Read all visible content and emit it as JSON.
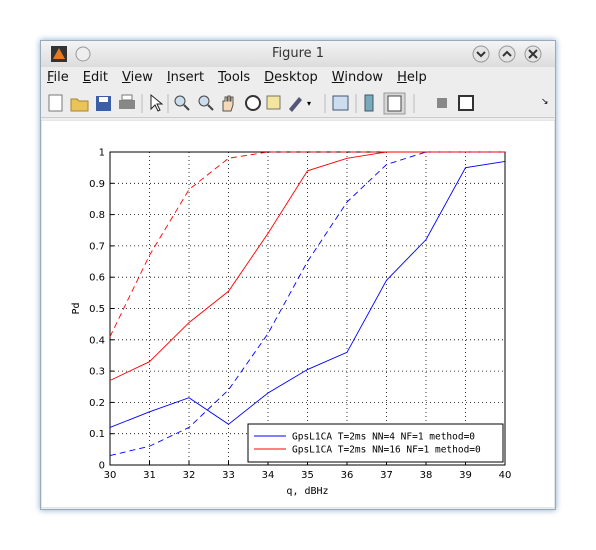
{
  "window": {
    "title": "Figure 1",
    "menu": [
      "File",
      "Edit",
      "View",
      "Insert",
      "Tools",
      "Desktop",
      "Window",
      "Help"
    ]
  },
  "chart_data": {
    "type": "line",
    "x_label": "q, dBHz",
    "y_label": "Pd",
    "x": [
      30,
      31,
      32,
      33,
      34,
      35,
      36,
      37,
      38,
      39,
      40
    ],
    "series": [
      {
        "name": "GpsL1CA T=2ms NN=4 NF=1 method=0",
        "color": "#0000ff",
        "dashed": false,
        "values": [
          0.12,
          0.17,
          0.215,
          0.13,
          0.23,
          0.305,
          0.36,
          0.59,
          0.72,
          0.95,
          0.97
        ]
      },
      {
        "name": "GpsL1CA T=2ms NN=16 NF=1 method=0",
        "color": "#ff0000",
        "dashed": false,
        "values": [
          0.27,
          0.33,
          0.455,
          0.555,
          0.74,
          0.94,
          0.98,
          1.0,
          1.0,
          1.0,
          1.0
        ]
      },
      {
        "color": "#0000ff",
        "dashed": true,
        "values": [
          0.03,
          0.06,
          0.12,
          0.24,
          0.42,
          0.65,
          0.84,
          0.96,
          1.0,
          1.0,
          1.0
        ]
      },
      {
        "color": "#ff0000",
        "dashed": true,
        "values": [
          0.41,
          0.67,
          0.88,
          0.98,
          1.0,
          1.0,
          1.0,
          1.0,
          1.0,
          1.0,
          1.0
        ]
      }
    ],
    "xlim": [
      30,
      40
    ],
    "xticks": [
      30,
      31,
      32,
      33,
      34,
      35,
      36,
      37,
      38,
      39,
      40
    ],
    "ylim": [
      0,
      1
    ],
    "yticks": [
      0,
      0.1,
      0.2,
      0.3,
      0.4,
      0.5,
      0.6,
      0.7,
      0.8,
      0.9,
      1
    ],
    "grid": true,
    "legend": "lower-right"
  }
}
